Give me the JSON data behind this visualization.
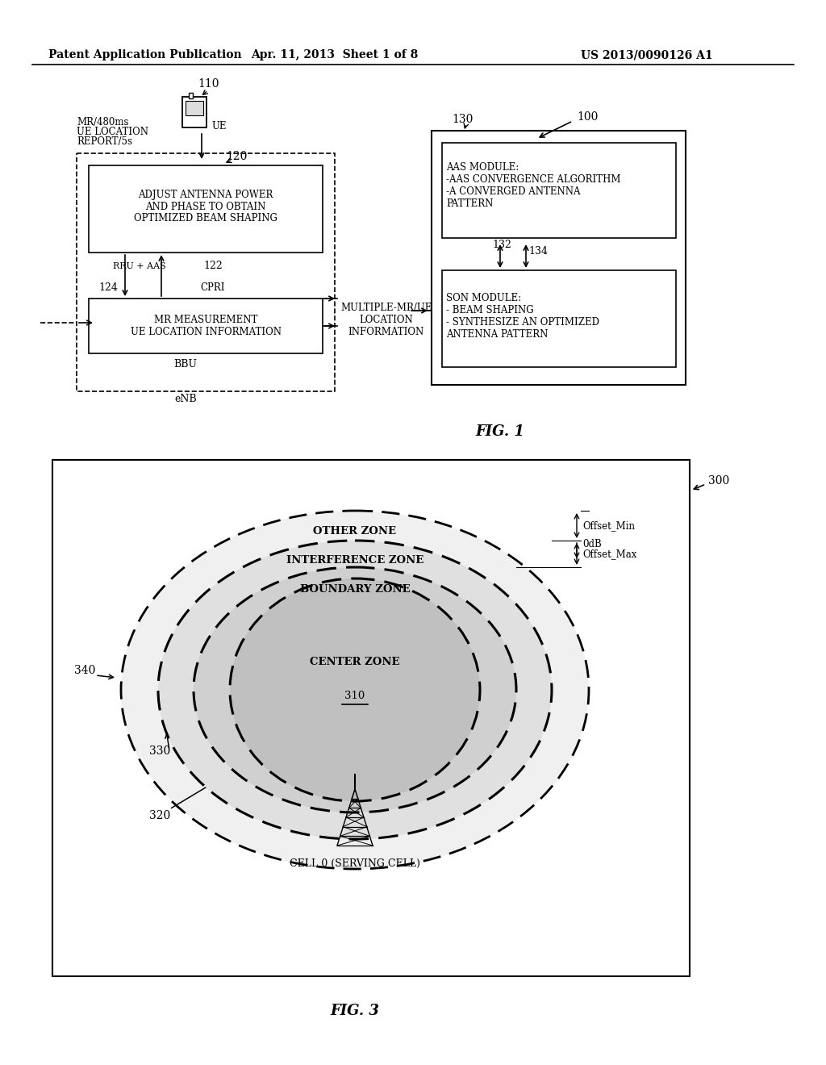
{
  "bg_color": "#ffffff",
  "header_text": "Patent Application Publication",
  "header_date": "Apr. 11, 2013  Sheet 1 of 8",
  "header_patent": "US 2013/0090126 A1",
  "fig1_label": "FIG. 1",
  "fig3_label": "FIG. 3",
  "fig1_ref_100": "100",
  "fig1_ref_110": "110",
  "fig1_ref_120": "120",
  "fig1_ref_122": "122",
  "fig1_ref_124": "124",
  "fig1_ref_130": "130",
  "fig1_ref_132": "132",
  "fig1_ref_134": "134",
  "fig1_enb": "eNB",
  "fig1_bbu": "BBU",
  "fig1_rru_aas": "RRU + AAS",
  "fig1_cpri": "CPRI",
  "fig1_mr480ms": "MR/480ms",
  "fig1_ue_location": "UE LOCATION",
  "fig1_report5s": "REPORT/5s",
  "fig1_ue": "UE",
  "fig1_adjust_box": "ADJUST ANTENNA POWER\nAND PHASE TO OBTAIN\nOPTIMIZED BEAM SHAPING",
  "fig1_mr_meas": "MR MEASUREMENT\nUE LOCATION INFORMATION",
  "fig1_multiple_mr": "MULTIPLE-MR/UE\nLOCATION\nINFORMATION",
  "fig1_aas_module": "AAS MODULE:\n-AAS CONVERGENCE ALGORITHM\n-A CONVERGED ANTENNA\nPATTERN",
  "fig1_son_module": "SON MODULE:\n- BEAM SHAPING\n- SYNTHESIZE AN OPTIMIZED\nANTENNA PATTERN",
  "fig3_ref_300": "300",
  "fig3_ref_310": "310",
  "fig3_ref_320": "320",
  "fig3_ref_330": "330",
  "fig3_ref_340": "340",
  "fig3_other_zone": "OTHER ZONE",
  "fig3_interference_zone": "INTERFERENCE ZONE",
  "fig3_boundary_zone": "BOUNDARY ZONE",
  "fig3_center_zone": "CENTER ZONE",
  "fig3_offset_min": "Offset_Min",
  "fig3_0db": "0dB",
  "fig3_offset_max": "Offset_Max",
  "fig3_cell0": "CELL 0 (SERVING CELL)"
}
